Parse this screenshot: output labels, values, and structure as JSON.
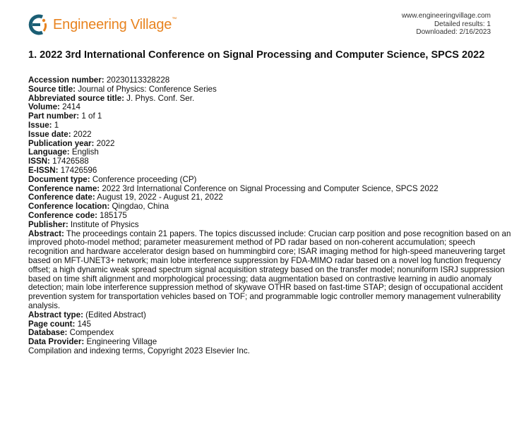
{
  "header": {
    "logo_text": "Engineering Village",
    "logo_tm": "™",
    "site": "www.engineeringvillage.com",
    "results": "Detailed results: 1",
    "downloaded": "Downloaded: 2/16/2023",
    "colors": {
      "logo_teal": "#1a5e74",
      "logo_orange": "#e8831f"
    }
  },
  "record": {
    "title": "1. 2022 3rd International Conference on Signal Processing and Computer Science, SPCS 2022",
    "fields": [
      {
        "label": "Accession number:",
        "value": " 20230113328228"
      },
      {
        "label": "Source title:",
        "value": " Journal of Physics: Conference Series"
      },
      {
        "label": "Abbreviated source title:",
        "value": " J. Phys. Conf. Ser."
      },
      {
        "label": "Volume:",
        "value": " 2414"
      },
      {
        "label": "Part number:",
        "value": " 1 of 1"
      },
      {
        "label": "Issue:",
        "value": " 1"
      },
      {
        "label": "Issue date:",
        "value": " 2022"
      },
      {
        "label": "Publication year:",
        "value": " 2022"
      },
      {
        "label": "Language:",
        "value": " English"
      },
      {
        "label": "ISSN:",
        "value": " 17426588"
      },
      {
        "label": "E-ISSN:",
        "value": " 17426596"
      },
      {
        "label": "Document type:",
        "value": " Conference proceeding (CP)"
      },
      {
        "label": "Conference name:",
        "value": " 2022 3rd International Conference on Signal Processing and Computer Science, SPCS 2022"
      },
      {
        "label": "Conference date:",
        "value": " August 19, 2022 - August 21, 2022"
      },
      {
        "label": "Conference location:",
        "value": " Qingdao, China"
      },
      {
        "label": "Conference code:",
        "value": " 185175"
      },
      {
        "label": "Publisher:",
        "value": " Institute of Physics"
      },
      {
        "label": "Abstract:",
        "value": " The proceedings contain 21 papers. The topics discussed include: Crucian carp position and pose recognition based on an improved photo-model method; parameter measurement method of PD radar based on non-coherent accumulation; speech recognition and hardware accelerator design based on hummingbird core; ISAR imaging method for high-speed maneuvering target based on MFT-UNET3+ network; main lobe interference suppression by FDA-MIMO radar based on a novel log function frequency offset; a high dynamic weak spread spectrum signal acquisition strategy based on the transfer model; nonuniform ISRJ suppression based on time shift alignment and morphological processing; data augmentation based on contrastive learning in audio anomaly detection; main lobe interference suppression method of skywave OTHR based on fast-time STAP; design of occupational accident prevention system for transportation vehicles based on TOF; and programmable logic controller memory management vulnerability analysis."
      },
      {
        "label": "Abstract type:",
        "value": " (Edited Abstract)"
      },
      {
        "label": "Page count:",
        "value": " 145"
      },
      {
        "label": "Database:",
        "value": " Compendex"
      },
      {
        "label": "Data Provider:",
        "value": " Engineering Village"
      }
    ],
    "copyright": "Compilation and indexing terms, Copyright 2023 Elsevier Inc."
  }
}
